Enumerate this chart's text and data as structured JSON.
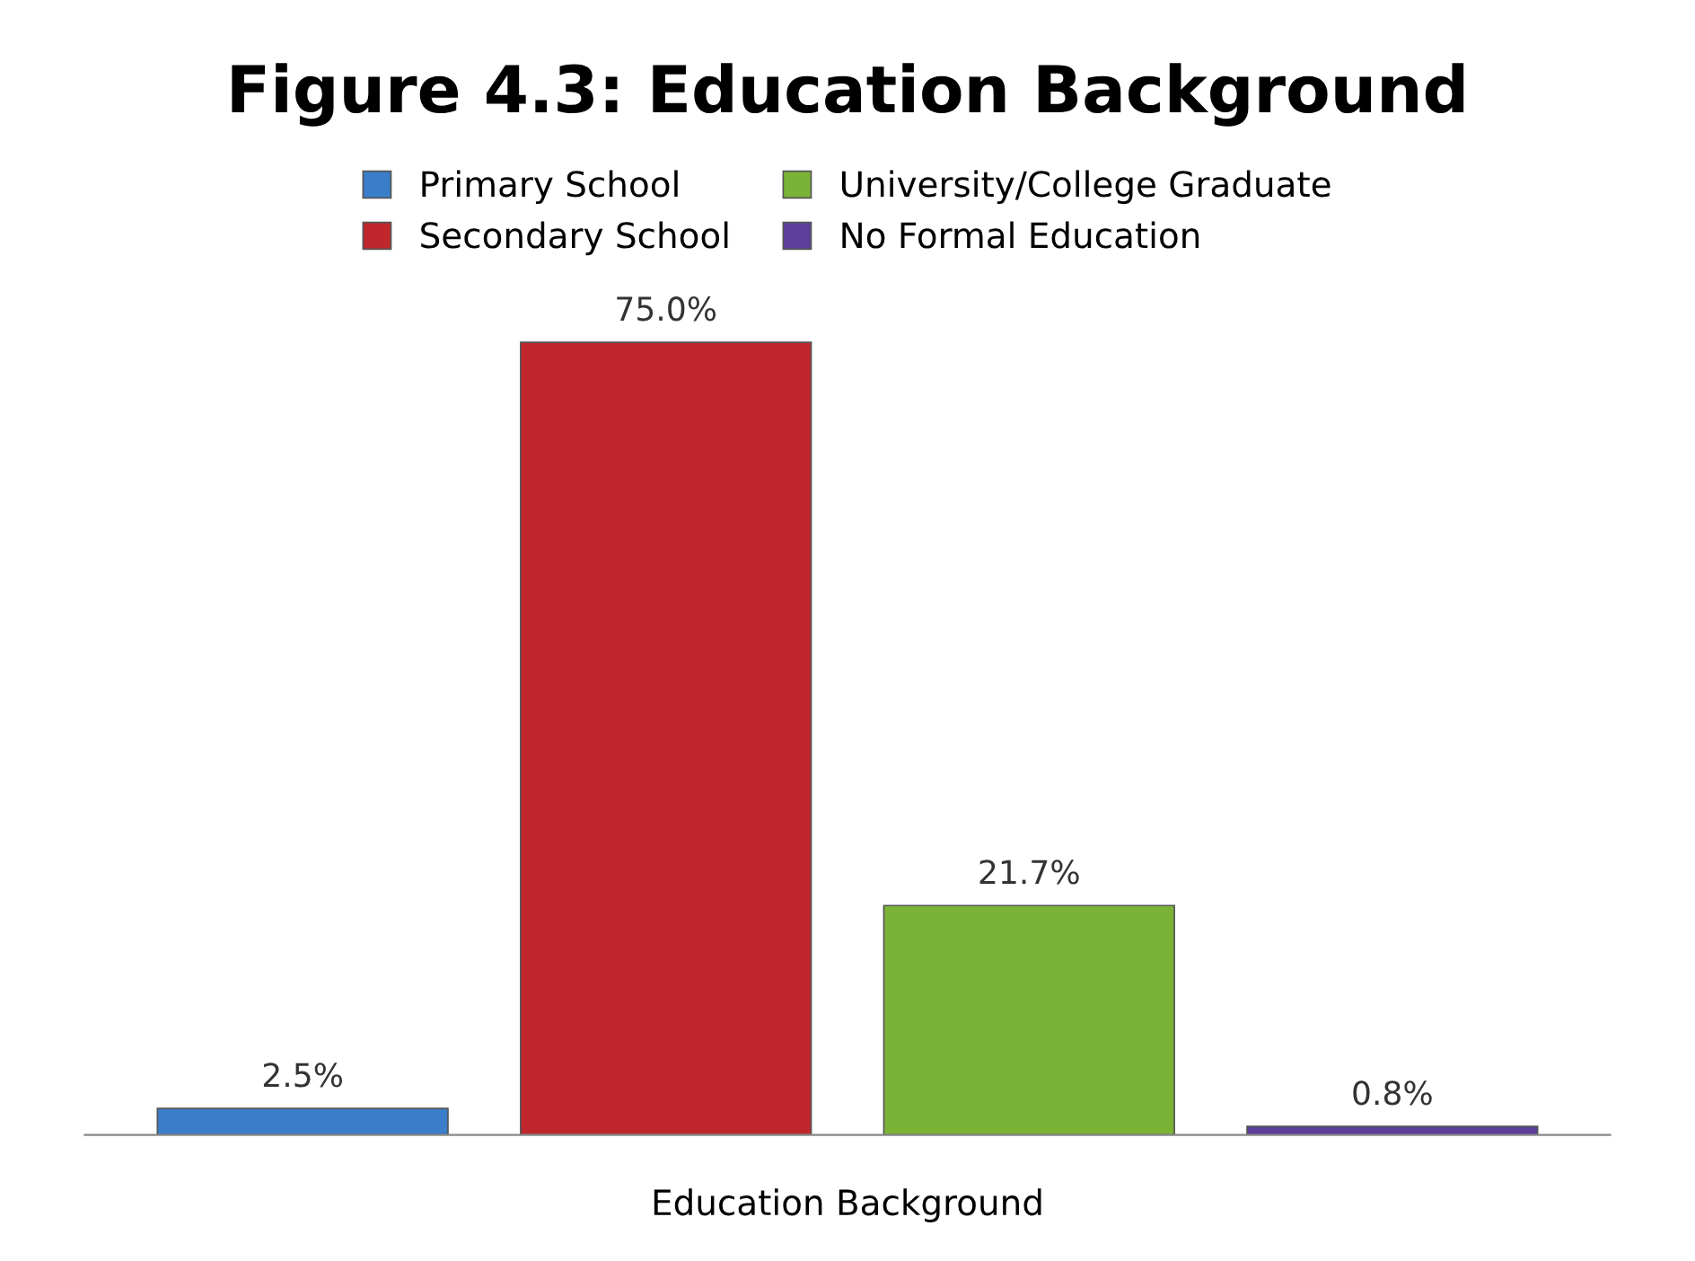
{
  "chart_data": {
    "type": "bar",
    "title": "Figure 4.3: Education Background",
    "xlabel": "Education Background",
    "categories": [
      null
    ],
    "series": [
      {
        "name": "Primary School",
        "color": "#3a7dc9",
        "values": [
          2.5
        ],
        "value_labels": [
          "2.5%"
        ]
      },
      {
        "name": "Secondary School",
        "color": "#c0272d",
        "values": [
          75.0
        ],
        "value_labels": [
          "75.0%"
        ]
      },
      {
        "name": "University/College Graduate",
        "color": "#7ab335",
        "values": [
          21.7
        ],
        "value_labels": [
          "21.7%"
        ]
      },
      {
        "name": "No Formal Education",
        "color": "#5b3f9a",
        "values": [
          0.8
        ],
        "value_labels": [
          "0.8%"
        ]
      }
    ],
    "legend": "top",
    "grid": false
  }
}
